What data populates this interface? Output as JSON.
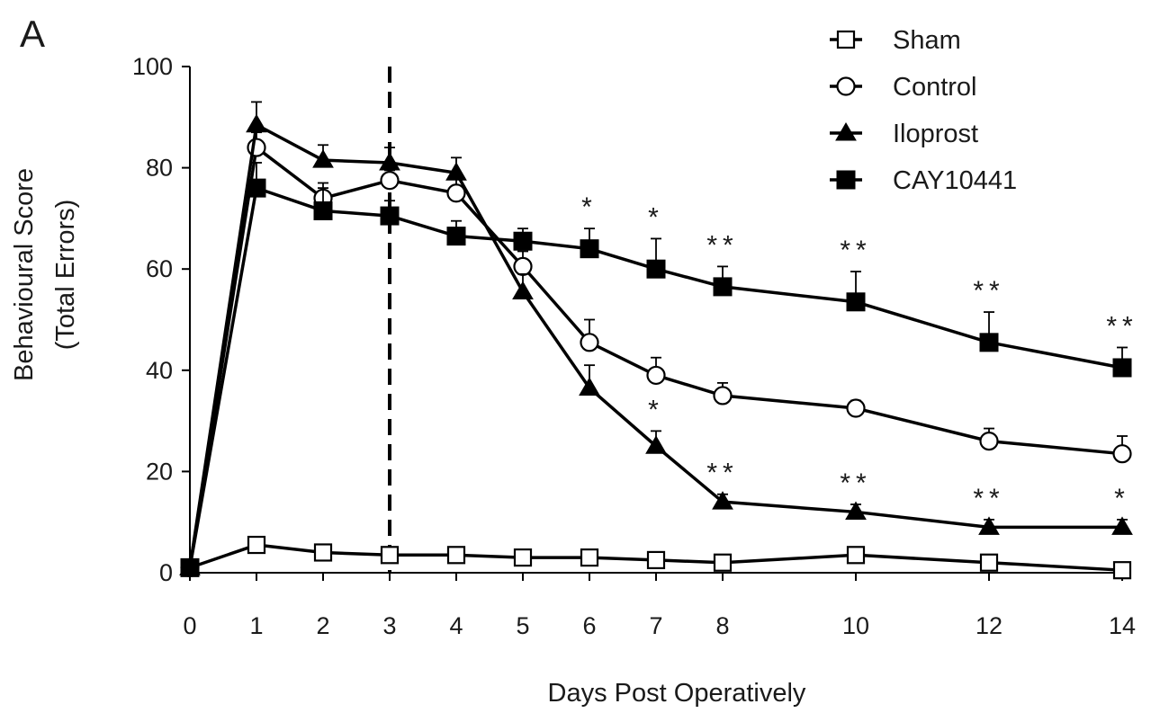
{
  "panel_label": "A",
  "chart_data": {
    "type": "line",
    "title": "",
    "xlabel": "Days Post Operatively",
    "ylabel": [
      "Behavioural Score",
      "(Total Errors)"
    ],
    "xlim": [
      0,
      14
    ],
    "ylim": [
      0,
      100
    ],
    "x_ticks": [
      0,
      1,
      2,
      3,
      4,
      5,
      6,
      7,
      8,
      10,
      12,
      14
    ],
    "y_ticks": [
      0,
      20,
      40,
      60,
      80,
      100
    ],
    "grid": false,
    "legend_position": "top-right",
    "reference_line": {
      "x": 3,
      "style": "dashed"
    },
    "x": [
      0,
      1,
      2,
      3,
      4,
      5,
      6,
      7,
      8,
      10,
      12,
      14
    ],
    "series": [
      {
        "name": "Sham",
        "marker": "square-open",
        "values": [
          1,
          5.5,
          4,
          3.5,
          3.5,
          3,
          3,
          2.5,
          2,
          3.5,
          2,
          0.5
        ],
        "errors": [
          0,
          1.5,
          1,
          1,
          1,
          1,
          1,
          1,
          1,
          1,
          1,
          0.5
        ]
      },
      {
        "name": "Control",
        "marker": "circle-open",
        "values": [
          1,
          84,
          74,
          77.5,
          75,
          60.5,
          45.5,
          39,
          35,
          32.5,
          26,
          23.5
        ],
        "errors": [
          0,
          3,
          3,
          2,
          3,
          3,
          4.5,
          3.5,
          2.5,
          1.5,
          2.5,
          3.5
        ],
        "significance": [
          "",
          "",
          "",
          "",
          "",
          "",
          "",
          "",
          "",
          "",
          "",
          ""
        ]
      },
      {
        "name": "Iloprost",
        "marker": "triangle-filled",
        "values": [
          1,
          88.5,
          81.5,
          81,
          79,
          55.5,
          36.5,
          25,
          14,
          12,
          9,
          9
        ],
        "errors": [
          0,
          4.5,
          3,
          3,
          3,
          3.5,
          4.5,
          3,
          1.5,
          1.5,
          1.5,
          1.5
        ],
        "significance": [
          "",
          "",
          "",
          "",
          "",
          "",
          "",
          "*",
          "**",
          "**",
          "**",
          "*"
        ]
      },
      {
        "name": "CAY10441",
        "marker": "square-filled",
        "values": [
          1,
          76,
          71.5,
          70.5,
          66.5,
          65.5,
          64,
          60,
          56.5,
          53.5,
          45.5,
          40.5
        ],
        "errors": [
          0,
          5,
          4.5,
          3,
          3,
          2.5,
          4,
          6,
          4,
          6,
          6,
          4
        ],
        "significance": [
          "",
          "",
          "",
          "",
          "",
          "",
          "*",
          "*",
          "**",
          "**",
          "**",
          "**"
        ]
      }
    ]
  },
  "colors": {
    "line": "#000000",
    "open_fill": "#ffffff",
    "filled": "#000000",
    "text": "#1a1a1a"
  }
}
